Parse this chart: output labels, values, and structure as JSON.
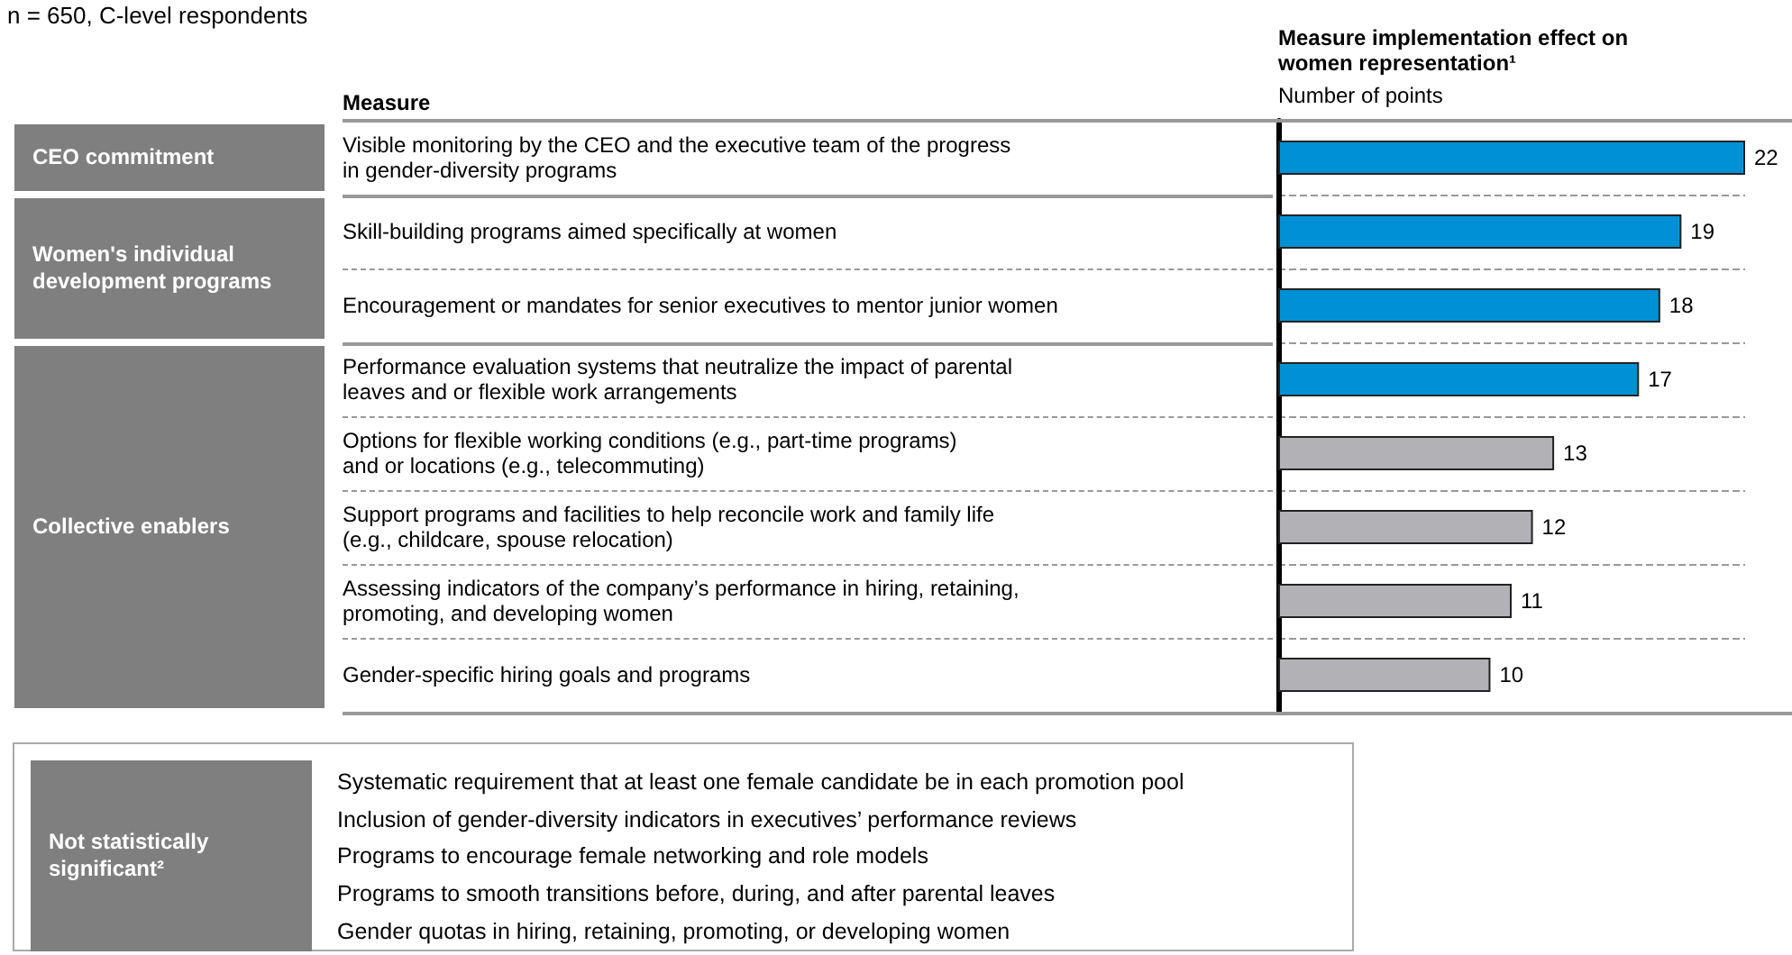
{
  "chart_data": {
    "type": "bar",
    "orientation": "horizontal",
    "title": "Measure implementation effect on women representation¹",
    "subtitle": "Number of points",
    "ylabel": "Measure",
    "categories": [
      "Visible monitoring by the CEO and the executive team of the progress\nin gender-diversity programs",
      "Skill-building programs aimed specifically at women",
      "Encouragement or mandates for senior executives to mentor junior women",
      "Performance evaluation systems that neutralize the impact of parental\nleaves and or flexible work arrangements",
      "Options for flexible working conditions (e.g., part-time programs)\nand or locations (e.g., telecommuting)",
      "Support programs and facilities to help reconcile work and family life\n(e.g., childcare, spouse relocation)",
      "Assessing indicators of the company’s performance in hiring, retaining,\npromoting, and developing women",
      "Gender-specific hiring goals and programs"
    ],
    "values": [
      22,
      19,
      18,
      17,
      13,
      12,
      11,
      10
    ],
    "colors": [
      "#0091d5",
      "#0091d5",
      "#0091d5",
      "#0091d5",
      "#b2b1b6",
      "#b2b1b6",
      "#b2b1b6",
      "#b2b1b6"
    ],
    "data_labels": true,
    "grid": "y",
    "annotations": [
      "n = 650, C-level respondents",
      "CEO commitment",
      "Women's individual development programs",
      "Collective enablers",
      "Not statistically significant²",
      "Systematic requirement that at least one female candidate be in each promotion pool",
      "Inclusion of gender-diversity indicators in executives’ performance reviews",
      "Programs to encourage female networking and role models",
      "Programs to smooth transitions before, during, and after parental leaves",
      "Gender quotas in hiring, retaining, promoting, or developing women"
    ]
  }
}
